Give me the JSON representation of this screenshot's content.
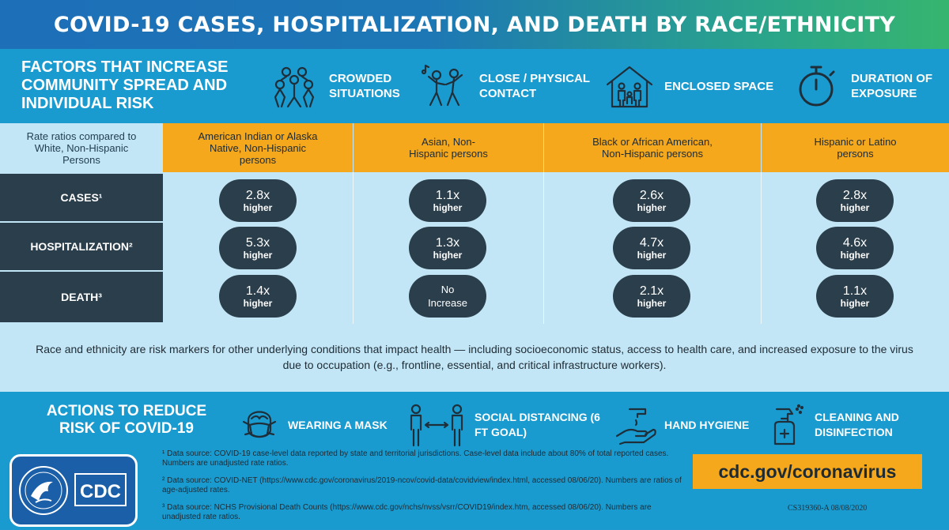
{
  "title": "COVID-19 CASES, HOSPITALIZATION, AND DEATH BY RACE/ETHNICITY",
  "factors": {
    "heading": "FACTORS THAT INCREASE COMMUNITY SPREAD AND INDIVIDUAL RISK",
    "items": [
      {
        "icon": "crowd-icon",
        "label": "CROWDED SITUATIONS"
      },
      {
        "icon": "dancing-people-icon",
        "label": "CLOSE / PHYSICAL CONTACT"
      },
      {
        "icon": "house-family-icon",
        "label": "ENCLOSED SPACE"
      },
      {
        "icon": "stopwatch-icon",
        "label": "DURATION OF EXPOSURE"
      }
    ]
  },
  "table": {
    "rate_ratio_label": "Rate ratios compared to White, Non-Hispanic Persons",
    "groups": [
      "American Indian or Alaska Native, Non-Hispanic persons",
      "Asian, Non-Hispanic persons",
      "Black or African American, Non-Hispanic persons",
      "Hispanic or Latino persons"
    ],
    "rows": [
      {
        "label": "CASES¹",
        "cells": [
          {
            "value": "2.8x",
            "suffix": "higher"
          },
          {
            "value": "1.1x",
            "suffix": "higher"
          },
          {
            "value": "2.6x",
            "suffix": "higher"
          },
          {
            "value": "2.8x",
            "suffix": "higher"
          }
        ]
      },
      {
        "label": "HOSPITALIZATION²",
        "cells": [
          {
            "value": "5.3x",
            "suffix": "higher"
          },
          {
            "value": "1.3x",
            "suffix": "higher"
          },
          {
            "value": "4.7x",
            "suffix": "higher"
          },
          {
            "value": "4.6x",
            "suffix": "higher"
          }
        ]
      },
      {
        "label": "DEATH³",
        "cells": [
          {
            "value": "1.4x",
            "suffix": "higher"
          },
          {
            "value": "No Increase",
            "suffix": ""
          },
          {
            "value": "2.1x",
            "suffix": "higher"
          },
          {
            "value": "1.1x",
            "suffix": "higher"
          }
        ]
      }
    ]
  },
  "note": "Race and ethnicity are risk markers for other underlying conditions that impact health — including socioeconomic status, access to health care, and increased exposure to the virus due to occupation (e.g., frontline, essential, and critical infrastructure workers).",
  "actions": {
    "heading": "ACTIONS TO REDUCE RISK OF COVID-19",
    "items": [
      {
        "icon": "mask-icon",
        "label": "WEARING A MASK"
      },
      {
        "icon": "social-distancing-icon",
        "label": "SOCIAL DISTANCING (6 FT GOAL)"
      },
      {
        "icon": "hand-hygiene-icon",
        "label": "HAND HYGIENE"
      },
      {
        "icon": "spray-bottle-icon",
        "label": "CLEANING AND DISINFECTION"
      }
    ]
  },
  "footnotes": [
    "¹ Data source: COVID-19 case-level data reported by state and territorial jurisdictions. Case-level data include about 80% of total reported cases. Numbers are unadjusted rate ratios.",
    "² Data source: COVID-NET (https://www.cdc.gov/coronavirus/2019-ncov/covid-data/covidview/index.html, accessed 08/06/20). Numbers are ratios of age-adjusted rates.",
    "³ Data source: NCHS Provisional Death Counts (https://www.cdc.gov/nchs/nvss/vsrr/COVID19/index.htm, accessed 08/06/20). Numbers are unadjusted rate ratios."
  ],
  "logo": {
    "text": "CDC",
    "icon": "hhs-eagle-logo"
  },
  "url": "cdc.gov/coronavirus",
  "code": "CS319360-A 08/08/2020",
  "colors": {
    "accent_orange": "#f5a81c",
    "dark_slate": "#2b3e4b",
    "light_blue": "#c3e6f7",
    "brand_blue": "#1a9bd0"
  }
}
